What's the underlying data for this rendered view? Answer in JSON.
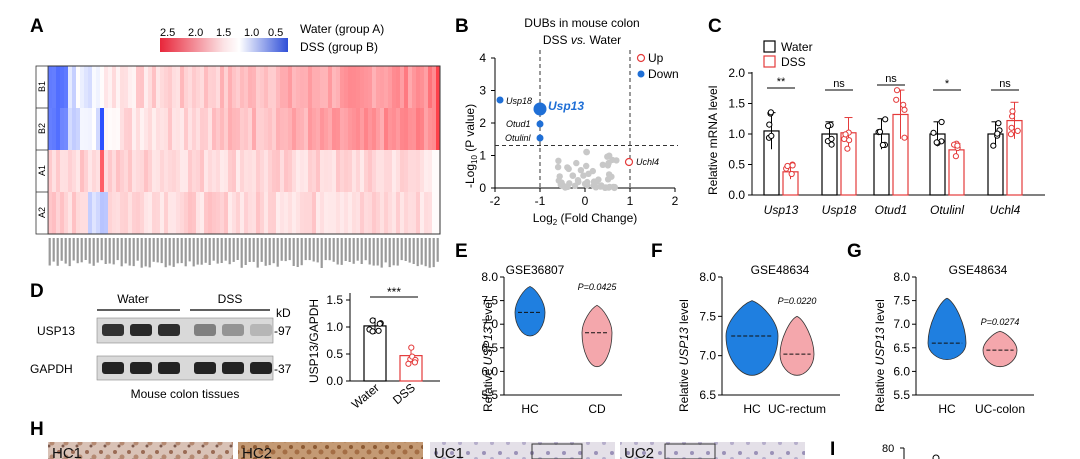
{
  "panels": {
    "A": {
      "label": "A",
      "cb_ticks": [
        "2.5",
        "2.0",
        "1.5",
        "1.0",
        "0.5"
      ],
      "legend": [
        "Water (group A)",
        "DSS (group B)"
      ],
      "rows": [
        "B1",
        "B2",
        "A1",
        "A2"
      ]
    },
    "B": {
      "label": "B",
      "title1": "DUBs in mouse colon",
      "title2_a": "DSS ",
      "title2_vs": "vs.",
      "title2_b": " Water",
      "legend_up": "Up",
      "legend_down": "Down",
      "genes": {
        "usp18": "Usp18",
        "usp13": "Usp13",
        "otud1": "Otud1",
        "otulinl": "Otulinl",
        "uchl4": "Uchl4"
      },
      "ylabel_pre": "-Log",
      "ylabel_sub": "10",
      "ylabel_post": " (P value)",
      "xlabel_pre": "Log",
      "xlabel_sub": "2",
      "xlabel_post": " (Fold Change)",
      "xticks": [
        "-2",
        "-1",
        "0",
        "1",
        "2"
      ],
      "yticks": [
        "0",
        "1",
        "2",
        "3",
        "4"
      ]
    },
    "C": {
      "label": "C",
      "legend": [
        "Water",
        "DSS"
      ],
      "ylabel": "Relative mRNA level",
      "yticks": [
        "0.0",
        "0.5",
        "1.0",
        "1.5",
        "2.0"
      ],
      "genes": [
        "Usp13",
        "Usp18",
        "Otud1",
        "Otulinl",
        "Uchl4"
      ],
      "sig": [
        "**",
        "ns",
        "ns",
        "*",
        "ns"
      ]
    },
    "D": {
      "label": "D",
      "group_water": "Water",
      "group_dss": "DSS",
      "kd": "kD",
      "rows": [
        "USP13",
        "GAPDH"
      ],
      "markers": [
        "-97",
        "-37"
      ],
      "caption": "Mouse colon tissues",
      "ylabel": "USP13/GAPDH",
      "yticks": [
        "0.0",
        "0.5",
        "1.0",
        "1.5"
      ],
      "xcats": [
        "Water",
        "DSS"
      ],
      "sig": "***"
    },
    "E": {
      "label": "E",
      "title": "GSE36807",
      "pval": "P=0.0425",
      "cats": [
        "HC",
        "CD"
      ],
      "yticks": [
        "5.5",
        "6.0",
        "6.5",
        "7.0",
        "7.5",
        "8.0"
      ],
      "ylabel_pre": "Relative ",
      "ylabel_gene": "USP13",
      "ylabel_post": " level"
    },
    "F": {
      "label": "F",
      "title": "GSE48634",
      "pval": "P=0.0220",
      "cats": [
        "HC",
        "UC-rectum"
      ],
      "yticks": [
        "6.5",
        "7.0",
        "7.5",
        "8.0"
      ],
      "ylabel_pre": "Relative ",
      "ylabel_gene": "USP13",
      "ylabel_post": " level"
    },
    "G": {
      "label": "G",
      "title": "GSE48634",
      "pval": "P=0.0274",
      "cats": [
        "HC",
        "UC-colon"
      ],
      "yticks": [
        "5.5",
        "6.0",
        "6.5",
        "7.0",
        "7.5",
        "8.0"
      ],
      "ylabel_pre": "Relative ",
      "ylabel_gene": "USP13",
      "ylabel_post": " level"
    },
    "H": {
      "label": "H",
      "tiles": [
        "HC1",
        "HC2",
        "UC1",
        "UC2"
      ]
    },
    "I": {
      "label": "I",
      "ytick": "80"
    }
  },
  "chart_data": [
    {
      "type": "heatmap",
      "panel": "A",
      "rows": [
        "B1",
        "B2",
        "A1",
        "A2"
      ],
      "color_range": [
        0.5,
        2.5
      ]
    },
    {
      "type": "scatter",
      "panel": "B",
      "title": "DUBs in mouse colon DSS vs. Water",
      "xlabel": "Log2 (Fold Change)",
      "ylabel": "-Log10 (P value)",
      "xlim": [
        -2,
        2
      ],
      "ylim": [
        0,
        4
      ],
      "thresholds": {
        "x": [
          -1,
          1
        ],
        "y": 1.3
      },
      "labeled_points": [
        {
          "name": "Usp18",
          "x": -1.9,
          "y": 2.7
        },
        {
          "name": "Usp13",
          "x": -1.1,
          "y": 2.35
        },
        {
          "name": "Otud1",
          "x": -1.1,
          "y": 1.95
        },
        {
          "name": "Otulinl",
          "x": -1.1,
          "y": 1.5
        },
        {
          "name": "Uchl4",
          "x": 1.0,
          "y": 0.8
        }
      ]
    },
    {
      "type": "bar",
      "panel": "C",
      "categories": [
        "Usp13",
        "Usp18",
        "Otud1",
        "Otulinl",
        "Uchl4"
      ],
      "ylabel": "Relative mRNA level",
      "ylim": [
        0,
        2
      ],
      "series": [
        {
          "name": "Water",
          "values": [
            1.05,
            1.0,
            1.0,
            1.0,
            1.0
          ],
          "err": [
            0.3,
            0.2,
            0.25,
            0.2,
            0.2
          ]
        },
        {
          "name": "DSS",
          "values": [
            0.38,
            1.02,
            1.32,
            0.74,
            1.22
          ],
          "err": [
            0.12,
            0.25,
            0.4,
            0.1,
            0.3
          ]
        }
      ],
      "significance": [
        "**",
        "ns",
        "ns",
        "*",
        "ns"
      ]
    },
    {
      "type": "bar",
      "panel": "D",
      "categories": [
        "Water",
        "DSS"
      ],
      "ylabel": "USP13/GAPDH",
      "ylim": [
        0,
        1.5
      ],
      "values": [
        1.02,
        0.47
      ],
      "err": [
        0.15,
        0.15
      ],
      "significance": "***"
    },
    {
      "type": "violin",
      "panel": "E",
      "title": "GSE36807",
      "categories": [
        "HC",
        "CD"
      ],
      "ylim": [
        5.5,
        8.0
      ],
      "medians": [
        7.25,
        6.82
      ],
      "ranges": [
        [
          6.75,
          7.8
        ],
        [
          6.1,
          7.4
        ]
      ],
      "p_value": "P=0.0425"
    },
    {
      "type": "violin",
      "panel": "F",
      "title": "GSE48634",
      "categories": [
        "HC",
        "UC-rectum"
      ],
      "ylim": [
        6.5,
        8.0
      ],
      "medians": [
        7.25,
        7.02
      ],
      "ranges": [
        [
          6.75,
          7.7
        ],
        [
          6.75,
          7.5
        ]
      ],
      "p_value": "P=0.0220"
    },
    {
      "type": "violin",
      "panel": "G",
      "title": "GSE48634",
      "categories": [
        "HC",
        "UC-colon"
      ],
      "ylim": [
        5.5,
        8.0
      ],
      "medians": [
        6.6,
        6.45
      ],
      "ranges": [
        [
          6.25,
          7.55
        ],
        [
          6.1,
          6.85
        ]
      ],
      "p_value": "P=0.0274"
    }
  ]
}
